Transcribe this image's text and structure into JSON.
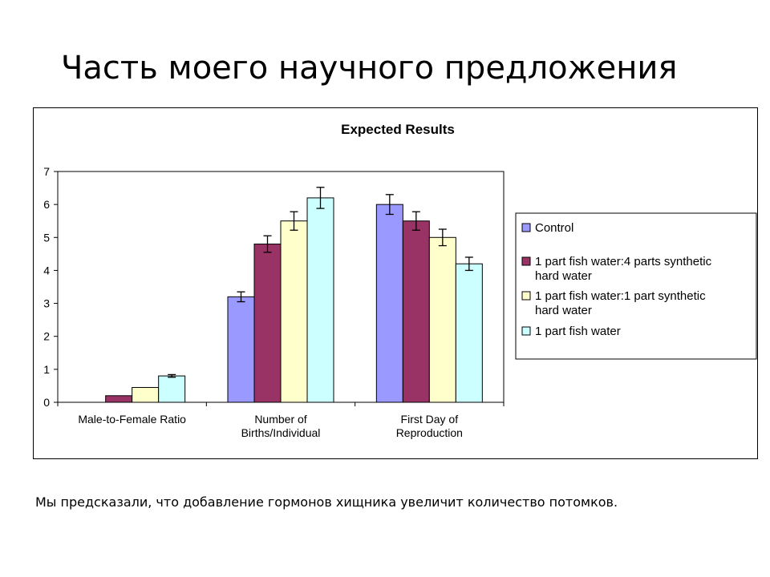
{
  "slide": {
    "title": "Часть моего научного предложения",
    "caption": "Мы предсказали, что добавление гормонов хищника увеличит количество потомков."
  },
  "chart_data": {
    "type": "bar",
    "title": "Expected Results",
    "xlabel": "",
    "ylabel": "",
    "ylim": [
      0,
      7
    ],
    "yticks": [
      "0",
      "1",
      "2",
      "3",
      "4",
      "5",
      "6",
      "7"
    ],
    "categories": [
      [
        "Male-to-Female Ratio"
      ],
      [
        "Number of",
        "Births/Individual"
      ],
      [
        "First Day of",
        "Reproduction"
      ]
    ],
    "series": [
      {
        "name": [
          "Control"
        ],
        "color": "#9999ff",
        "values": [
          0,
          3.2,
          6.0
        ],
        "errors": [
          0,
          0.15,
          0.3
        ]
      },
      {
        "name": [
          "1 part fish water:4 parts synthetic",
          "hard water"
        ],
        "color": "#993366",
        "values": [
          0.2,
          4.8,
          5.5
        ],
        "errors": [
          0,
          0.25,
          0.28
        ]
      },
      {
        "name": [
          "1 part fish water:1 part synthetic",
          "hard water"
        ],
        "color": "#ffffcc",
        "values": [
          0.45,
          5.5,
          5.0
        ],
        "errors": [
          0,
          0.28,
          0.25
        ]
      },
      {
        "name": [
          "1 part fish water"
        ],
        "color": "#ccffff",
        "values": [
          0.8,
          6.2,
          4.2
        ],
        "errors": [
          0.04,
          0.32,
          0.2
        ]
      }
    ],
    "grid": false,
    "legend_position": "right"
  }
}
